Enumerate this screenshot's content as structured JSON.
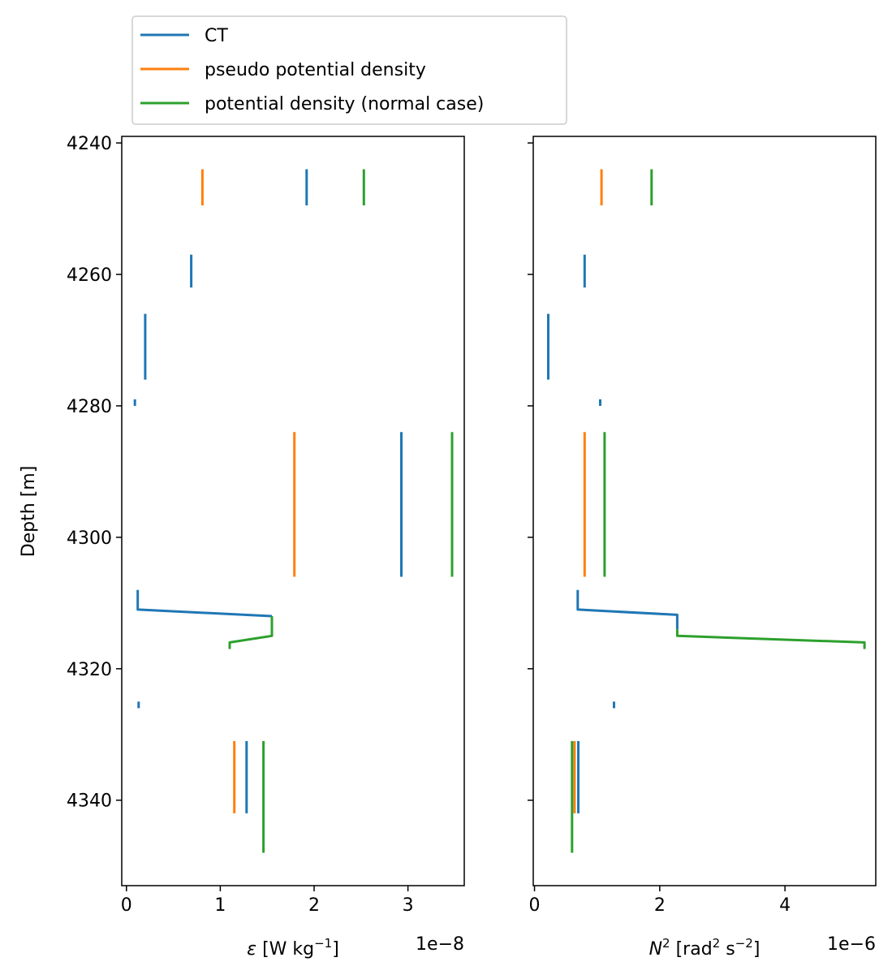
{
  "chart_data": [
    {
      "type": "line",
      "ylabel": "Depth [m]",
      "xlabel_symbol": "ε",
      "xlabel_rest": " [W kg",
      "xlabel_sup": "−1",
      "xlabel_end": "]",
      "offset_text": "1e−8",
      "xlim": [
        -0.05,
        3.6
      ],
      "ylim": [
        4353,
        4239
      ],
      "xticks": [
        {
          "value": 0,
          "label": "0"
        },
        {
          "value": 1,
          "label": "1"
        },
        {
          "value": 2,
          "label": "2"
        },
        {
          "value": 3,
          "label": "3"
        }
      ],
      "yticks": [
        {
          "value": 4240,
          "label": "4240"
        },
        {
          "value": 4260,
          "label": "4260"
        },
        {
          "value": 4280,
          "label": "4280"
        },
        {
          "value": 4300,
          "label": "4300"
        },
        {
          "value": 4320,
          "label": "4320"
        },
        {
          "value": 4340,
          "label": "4340"
        }
      ],
      "series": [
        {
          "name": "CT",
          "color": "#1f77b4",
          "segments": [
            [
              [
                1.92,
                4244
              ],
              [
                1.92,
                4249.5
              ]
            ],
            [
              [
                0.69,
                4257
              ],
              [
                0.69,
                4262
              ]
            ],
            [
              [
                0.2,
                4266
              ],
              [
                0.2,
                4276
              ]
            ],
            [
              [
                0.09,
                4279
              ],
              [
                0.09,
                4280
              ]
            ],
            [
              [
                2.93,
                4284
              ],
              [
                2.93,
                4306
              ]
            ],
            [
              [
                0.12,
                4308
              ],
              [
                0.12,
                4311
              ],
              [
                1.55,
                4312
              ]
            ],
            [
              [
                0.13,
                4325
              ],
              [
                0.13,
                4326
              ]
            ],
            [
              [
                1.28,
                4331
              ],
              [
                1.28,
                4342
              ]
            ]
          ]
        },
        {
          "name": "pseudo potential density",
          "color": "#ff7f0e",
          "segments": [
            [
              [
                0.81,
                4244
              ],
              [
                0.81,
                4249.5
              ]
            ],
            [
              [
                1.79,
                4284
              ],
              [
                1.79,
                4306
              ]
            ],
            [
              [
                1.15,
                4331
              ],
              [
                1.15,
                4342
              ]
            ]
          ]
        },
        {
          "name": "potential density (normal case)",
          "color": "#2ca02c",
          "segments": [
            [
              [
                2.53,
                4244
              ],
              [
                2.53,
                4249.5
              ]
            ],
            [
              [
                3.47,
                4284
              ],
              [
                3.47,
                4306
              ]
            ],
            [
              [
                1.55,
                4312
              ],
              [
                1.55,
                4315
              ],
              [
                1.1,
                4316
              ],
              [
                1.1,
                4317
              ]
            ],
            [
              [
                1.46,
                4331
              ],
              [
                1.46,
                4348
              ]
            ]
          ]
        }
      ]
    },
    {
      "type": "line",
      "xlabel_symbol": "N",
      "xlabel_sym_sup": "2",
      "xlabel_rest": " [rad",
      "xlabel_sup1": "2",
      "xlabel_mid": " s",
      "xlabel_sup2": "−2",
      "xlabel_end": "]",
      "offset_text": "1e−6",
      "xlim": [
        -0.02,
        5.45
      ],
      "ylim": [
        4353,
        4239
      ],
      "xticks": [
        {
          "value": 0,
          "label": "0"
        },
        {
          "value": 2,
          "label": "2"
        },
        {
          "value": 4,
          "label": "4"
        }
      ],
      "yticks": [
        4240,
        4260,
        4280,
        4300,
        4320,
        4340
      ],
      "series": [
        {
          "name": "CT",
          "color": "#1f77b4",
          "segments": [
            [
              [
                0.8,
                4257
              ],
              [
                0.8,
                4262
              ]
            ],
            [
              [
                0.22,
                4266
              ],
              [
                0.22,
                4276
              ]
            ],
            [
              [
                1.05,
                4279
              ],
              [
                1.05,
                4280
              ]
            ],
            [
              [
                0.69,
                4308
              ],
              [
                0.69,
                4311
              ],
              [
                2.28,
                4311.8
              ],
              [
                2.28,
                4314
              ]
            ],
            [
              [
                1.27,
                4325
              ],
              [
                1.27,
                4326
              ]
            ],
            [
              [
                0.7,
                4331
              ],
              [
                0.7,
                4342
              ]
            ]
          ]
        },
        {
          "name": "pseudo potential density",
          "color": "#ff7f0e",
          "segments": [
            [
              [
                1.07,
                4244
              ],
              [
                1.07,
                4249.5
              ]
            ],
            [
              [
                0.8,
                4284
              ],
              [
                0.8,
                4306
              ]
            ],
            [
              [
                0.64,
                4331
              ],
              [
                0.64,
                4342
              ]
            ]
          ]
        },
        {
          "name": "potential density (normal case)",
          "color": "#2ca02c",
          "segments": [
            [
              [
                1.87,
                4244
              ],
              [
                1.87,
                4249.5
              ]
            ],
            [
              [
                1.12,
                4284
              ],
              [
                1.12,
                4306
              ]
            ],
            [
              [
                2.28,
                4314
              ],
              [
                2.28,
                4315
              ],
              [
                5.27,
                4316
              ],
              [
                5.27,
                4317
              ]
            ],
            [
              [
                0.6,
                4331
              ],
              [
                0.6,
                4348
              ]
            ]
          ]
        }
      ]
    }
  ],
  "legend": {
    "placement": "top-left, above the plots",
    "items": [
      {
        "label": "CT",
        "color": "#1f77b4"
      },
      {
        "label": "pseudo potential density",
        "color": "#ff7f0e"
      },
      {
        "label": "potential density (normal case)",
        "color": "#2ca02c"
      }
    ]
  }
}
